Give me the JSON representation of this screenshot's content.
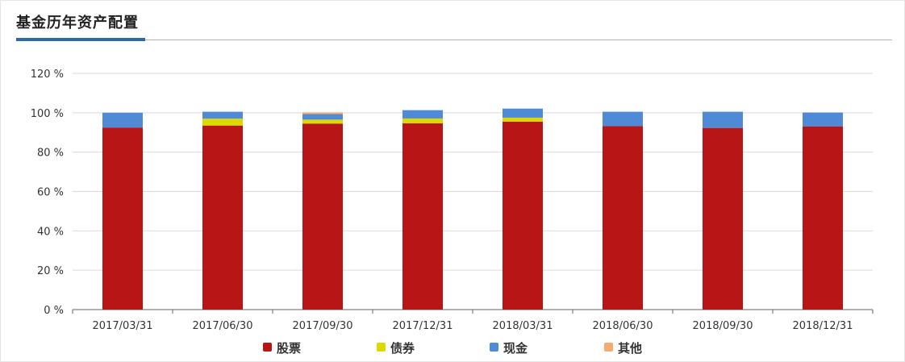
{
  "page": {
    "title": "基金历年资产配置"
  },
  "chart_data": {
    "type": "bar",
    "stacked": true,
    "title": "",
    "xlabel": "",
    "ylabel": "",
    "ylim": [
      0,
      120
    ],
    "y_ticks": [
      0,
      20,
      40,
      60,
      80,
      100,
      120
    ],
    "y_tick_suffix": " %",
    "grid": true,
    "legend_position": "bottom",
    "categories": [
      "2017/03/31",
      "2017/06/30",
      "2017/09/30",
      "2017/12/31",
      "2018/03/31",
      "2018/06/30",
      "2018/09/30",
      "2018/12/31"
    ],
    "series": [
      {
        "name": "股票",
        "color": "#b71516",
        "values": [
          92.5,
          93.5,
          94.5,
          94.6,
          95.5,
          93.2,
          92.3,
          93.1
        ]
      },
      {
        "name": "债券",
        "color": "#dcd800",
        "values": [
          0,
          3.5,
          2.0,
          2.5,
          2.0,
          0,
          0,
          0
        ]
      },
      {
        "name": "现金",
        "color": "#4f8ad6",
        "values": [
          7.5,
          3.5,
          2.9,
          4.2,
          4.6,
          7.3,
          8.2,
          7.0
        ]
      },
      {
        "name": "其他",
        "color": "#f6ac70",
        "values": [
          0,
          0,
          0.8,
          0,
          0,
          0,
          0,
          0
        ]
      }
    ]
  }
}
